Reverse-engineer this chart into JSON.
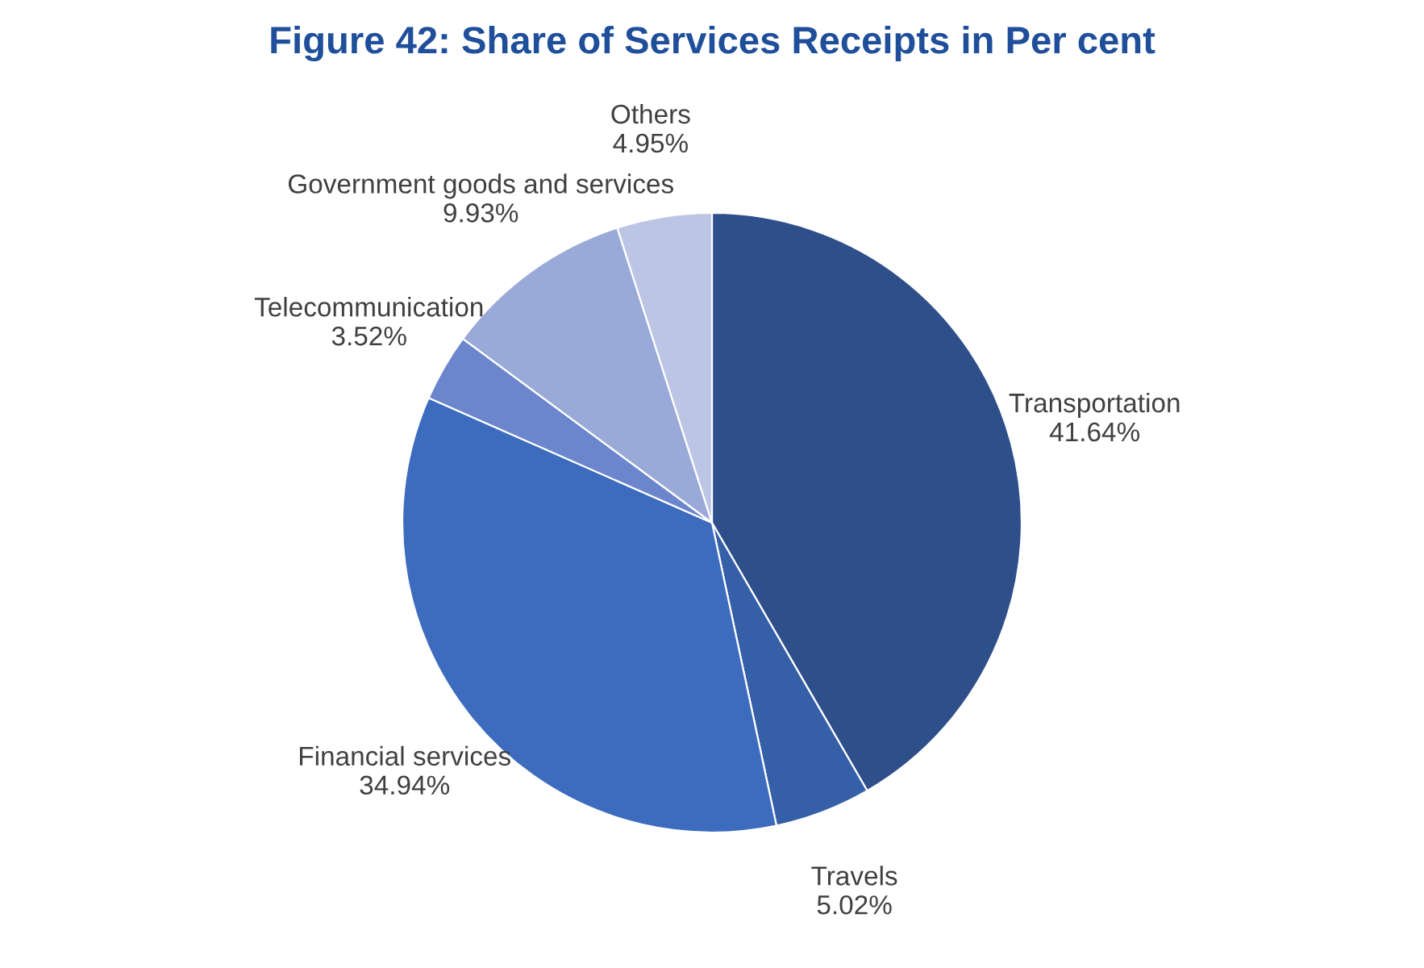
{
  "chart_data": {
    "type": "pie",
    "title": "Figure 42: Share of Services Receipts in Per cent",
    "categories": [
      "Transportation",
      "Travels",
      "Financial services",
      "Telecommunication",
      "Government goods and services",
      "Others"
    ],
    "values": [
      41.64,
      5.02,
      34.94,
      3.52,
      9.93,
      4.95
    ],
    "value_labels": [
      "41.64%",
      "5.02%",
      "34.94%",
      "3.52%",
      "9.93%",
      "4.95%"
    ],
    "colors": [
      "#2e4f8a",
      "#3560a8",
      "#3d6cbf",
      "#6b86cc",
      "#9aaad8",
      "#bcc5e4"
    ],
    "legend": false
  }
}
